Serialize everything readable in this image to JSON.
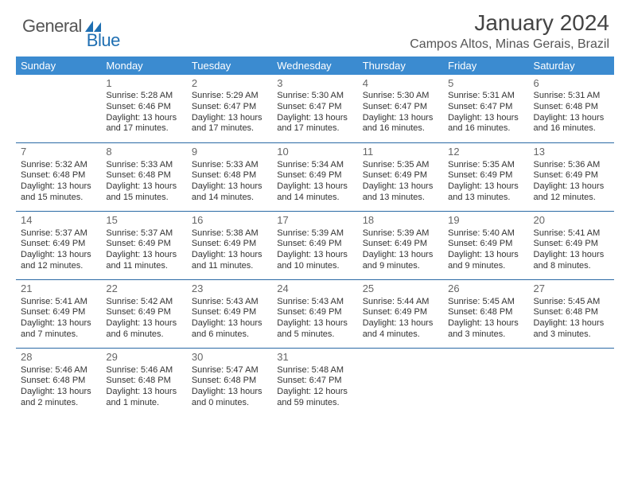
{
  "brand": {
    "general": "General",
    "blue": "Blue"
  },
  "title": "January 2024",
  "location": "Campos Altos, Minas Gerais, Brazil",
  "colors": {
    "header_bg": "#3b8bd0",
    "header_text": "#ffffff",
    "row_border": "#2b6aa5",
    "brand_blue": "#1f6fb2",
    "text": "#333333",
    "page_bg": "#ffffff"
  },
  "day_headers": [
    "Sunday",
    "Monday",
    "Tuesday",
    "Wednesday",
    "Thursday",
    "Friday",
    "Saturday"
  ],
  "grid": {
    "start_offset": 1,
    "days": [
      {
        "n": 1,
        "sunrise": "5:28 AM",
        "sunset": "6:46 PM",
        "daylight": "13 hours and 17 minutes."
      },
      {
        "n": 2,
        "sunrise": "5:29 AM",
        "sunset": "6:47 PM",
        "daylight": "13 hours and 17 minutes."
      },
      {
        "n": 3,
        "sunrise": "5:30 AM",
        "sunset": "6:47 PM",
        "daylight": "13 hours and 17 minutes."
      },
      {
        "n": 4,
        "sunrise": "5:30 AM",
        "sunset": "6:47 PM",
        "daylight": "13 hours and 16 minutes."
      },
      {
        "n": 5,
        "sunrise": "5:31 AM",
        "sunset": "6:47 PM",
        "daylight": "13 hours and 16 minutes."
      },
      {
        "n": 6,
        "sunrise": "5:31 AM",
        "sunset": "6:48 PM",
        "daylight": "13 hours and 16 minutes."
      },
      {
        "n": 7,
        "sunrise": "5:32 AM",
        "sunset": "6:48 PM",
        "daylight": "13 hours and 15 minutes."
      },
      {
        "n": 8,
        "sunrise": "5:33 AM",
        "sunset": "6:48 PM",
        "daylight": "13 hours and 15 minutes."
      },
      {
        "n": 9,
        "sunrise": "5:33 AM",
        "sunset": "6:48 PM",
        "daylight": "13 hours and 14 minutes."
      },
      {
        "n": 10,
        "sunrise": "5:34 AM",
        "sunset": "6:49 PM",
        "daylight": "13 hours and 14 minutes."
      },
      {
        "n": 11,
        "sunrise": "5:35 AM",
        "sunset": "6:49 PM",
        "daylight": "13 hours and 13 minutes."
      },
      {
        "n": 12,
        "sunrise": "5:35 AM",
        "sunset": "6:49 PM",
        "daylight": "13 hours and 13 minutes."
      },
      {
        "n": 13,
        "sunrise": "5:36 AM",
        "sunset": "6:49 PM",
        "daylight": "13 hours and 12 minutes."
      },
      {
        "n": 14,
        "sunrise": "5:37 AM",
        "sunset": "6:49 PM",
        "daylight": "13 hours and 12 minutes."
      },
      {
        "n": 15,
        "sunrise": "5:37 AM",
        "sunset": "6:49 PM",
        "daylight": "13 hours and 11 minutes."
      },
      {
        "n": 16,
        "sunrise": "5:38 AM",
        "sunset": "6:49 PM",
        "daylight": "13 hours and 11 minutes."
      },
      {
        "n": 17,
        "sunrise": "5:39 AM",
        "sunset": "6:49 PM",
        "daylight": "13 hours and 10 minutes."
      },
      {
        "n": 18,
        "sunrise": "5:39 AM",
        "sunset": "6:49 PM",
        "daylight": "13 hours and 9 minutes."
      },
      {
        "n": 19,
        "sunrise": "5:40 AM",
        "sunset": "6:49 PM",
        "daylight": "13 hours and 9 minutes."
      },
      {
        "n": 20,
        "sunrise": "5:41 AM",
        "sunset": "6:49 PM",
        "daylight": "13 hours and 8 minutes."
      },
      {
        "n": 21,
        "sunrise": "5:41 AM",
        "sunset": "6:49 PM",
        "daylight": "13 hours and 7 minutes."
      },
      {
        "n": 22,
        "sunrise": "5:42 AM",
        "sunset": "6:49 PM",
        "daylight": "13 hours and 6 minutes."
      },
      {
        "n": 23,
        "sunrise": "5:43 AM",
        "sunset": "6:49 PM",
        "daylight": "13 hours and 6 minutes."
      },
      {
        "n": 24,
        "sunrise": "5:43 AM",
        "sunset": "6:49 PM",
        "daylight": "13 hours and 5 minutes."
      },
      {
        "n": 25,
        "sunrise": "5:44 AM",
        "sunset": "6:49 PM",
        "daylight": "13 hours and 4 minutes."
      },
      {
        "n": 26,
        "sunrise": "5:45 AM",
        "sunset": "6:48 PM",
        "daylight": "13 hours and 3 minutes."
      },
      {
        "n": 27,
        "sunrise": "5:45 AM",
        "sunset": "6:48 PM",
        "daylight": "13 hours and 3 minutes."
      },
      {
        "n": 28,
        "sunrise": "5:46 AM",
        "sunset": "6:48 PM",
        "daylight": "13 hours and 2 minutes."
      },
      {
        "n": 29,
        "sunrise": "5:46 AM",
        "sunset": "6:48 PM",
        "daylight": "13 hours and 1 minute."
      },
      {
        "n": 30,
        "sunrise": "5:47 AM",
        "sunset": "6:48 PM",
        "daylight": "13 hours and 0 minutes."
      },
      {
        "n": 31,
        "sunrise": "5:48 AM",
        "sunset": "6:47 PM",
        "daylight": "12 hours and 59 minutes."
      }
    ]
  },
  "labels": {
    "sunrise": "Sunrise:",
    "sunset": "Sunset:",
    "daylight": "Daylight:"
  }
}
